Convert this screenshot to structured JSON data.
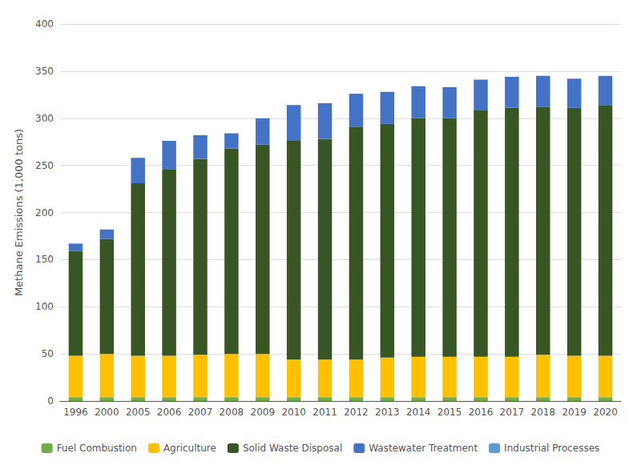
{
  "chart_data": {
    "type": "bar",
    "stacked": true,
    "ylabel": "Methane Emissions (1,000 tons)",
    "categories": [
      "1996",
      "2000",
      "2005",
      "2006",
      "2007",
      "2008",
      "2009",
      "2010",
      "2011",
      "2012",
      "2013",
      "2014",
      "2015",
      "2016",
      "2017",
      "2018",
      "2019",
      "2020"
    ],
    "series": [
      {
        "name": "Fuel Combustion",
        "color": "#70AD47",
        "values": [
          4,
          4,
          4,
          4,
          4,
          4,
          4,
          4,
          4,
          4,
          4,
          4,
          4,
          4,
          4,
          4,
          4,
          4
        ]
      },
      {
        "name": "Agriculture",
        "color": "#FFC000",
        "values": [
          44,
          46,
          44,
          44,
          45,
          46,
          46,
          40,
          40,
          40,
          42,
          43,
          43,
          43,
          43,
          45,
          44,
          44
        ]
      },
      {
        "name": "Solid Waste Disposal",
        "color": "#375623",
        "values": [
          111,
          122,
          183,
          198,
          208,
          218,
          222,
          232,
          234,
          247,
          248,
          253,
          253,
          262,
          264,
          263,
          263,
          266
        ]
      },
      {
        "name": "Wastewater Treatment",
        "color": "#4472C4",
        "values": [
          8,
          10,
          27,
          30,
          25,
          16,
          28,
          38,
          38,
          35,
          34,
          34,
          33,
          32,
          33,
          33,
          31,
          31
        ]
      },
      {
        "name": "Industrial Processes",
        "color": "#5B9BD5",
        "values": [
          0,
          0,
          0,
          0,
          0,
          0,
          0,
          0,
          0,
          0,
          0,
          0,
          0,
          0,
          0,
          0,
          0,
          0
        ]
      }
    ],
    "ylim": [
      0,
      400
    ],
    "yticks": [
      0,
      50,
      100,
      150,
      200,
      250,
      300,
      350,
      400
    ],
    "grid": true,
    "legend": "bottom"
  }
}
